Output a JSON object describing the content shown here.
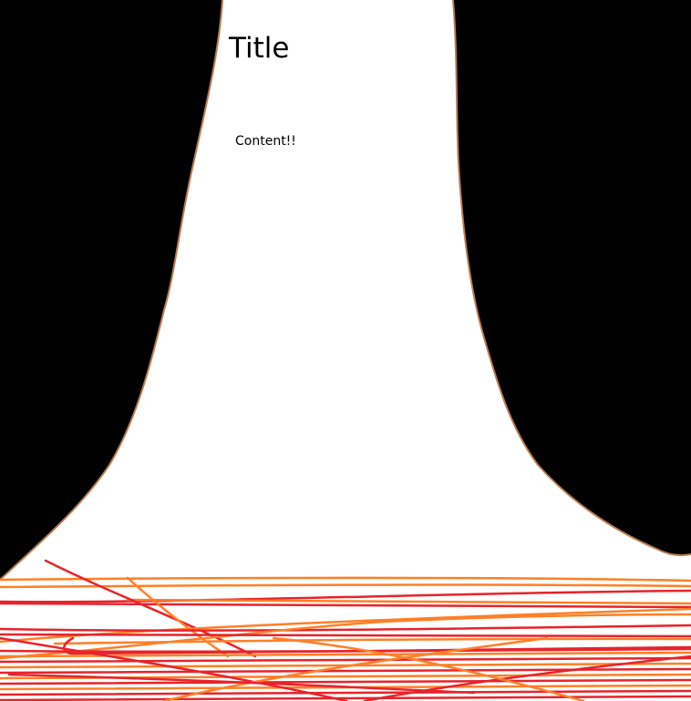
{
  "title": "Title",
  "content": "Content!!",
  "colors": {
    "background_dark": "#000000",
    "page_fill": "#ffffff",
    "outline": "#b87c52",
    "scribble_red": "#e8232b",
    "scribble_orange": "#ff7f27"
  }
}
